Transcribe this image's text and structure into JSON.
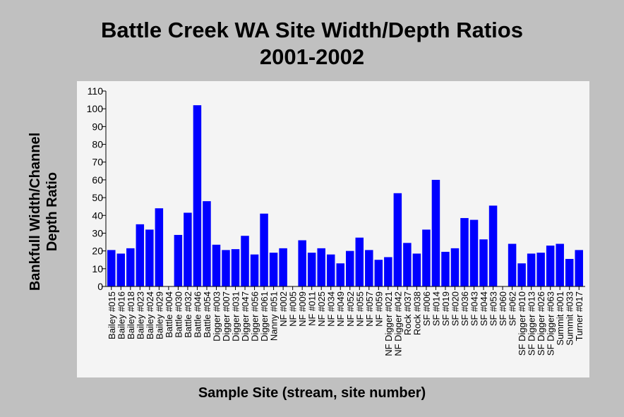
{
  "chart_data": {
    "type": "bar",
    "title_line1": "Battle Creek WA Site Width/Depth Ratios",
    "title_line2": "2001-2002",
    "xlabel": "Sample Site (stream, site number)",
    "ylabel_line1": "Bankfull Width/Channel",
    "ylabel_line2": "Depth Ratio",
    "ylim": [
      0,
      110
    ],
    "yticks": [
      0,
      10,
      20,
      30,
      40,
      50,
      60,
      70,
      80,
      90,
      100,
      110
    ],
    "bar_color": "#0000ff",
    "plot_background": "#f4f4f4",
    "categories": [
      "Bailey #015",
      "Bailey #016",
      "Bailey #018",
      "Bailey #023",
      "Bailey #024",
      "Bailey #029",
      "Battle #004",
      "Battle #030",
      "Battle #032",
      "Battle #046",
      "Battle #054",
      "Digger #003",
      "Digger #007",
      "Digger #031",
      "Digger #047",
      "Digger #056",
      "Digger #061",
      "Nanny #051",
      "NF #002",
      "NF #005",
      "NF #009",
      "NF #011",
      "NF #025",
      "NF #034",
      "NF #049",
      "NF #052",
      "NF #055",
      "NF #057",
      "NF #059",
      "NF Digger #021",
      "NF Digger #042",
      "Rock #037",
      "Rock #038",
      "SF #006",
      "SF #014",
      "SF #019",
      "SF #020",
      "SF #036",
      "SF #043",
      "SF #044",
      "SF #053",
      "SF #060",
      "SF #062",
      "SF Digger #010",
      "SF Digger #013",
      "SF Digger #026",
      "SF Digger #063",
      "Summit #001",
      "Summit #033",
      "Turner #017"
    ],
    "values": [
      20.5,
      18.5,
      21.5,
      35,
      32,
      44,
      null,
      29,
      41.5,
      102,
      48,
      23.5,
      20.5,
      21,
      28.5,
      18,
      41,
      19,
      21.5,
      null,
      26,
      19,
      21.5,
      18,
      13,
      20,
      27.5,
      20.5,
      15,
      16.5,
      52.5,
      24.5,
      18.5,
      32,
      60,
      19.5,
      21.5,
      38.5,
      37.5,
      26.5,
      45.5,
      null,
      24,
      13,
      18.5,
      19,
      23,
      24,
      15.5,
      20.5
    ]
  }
}
